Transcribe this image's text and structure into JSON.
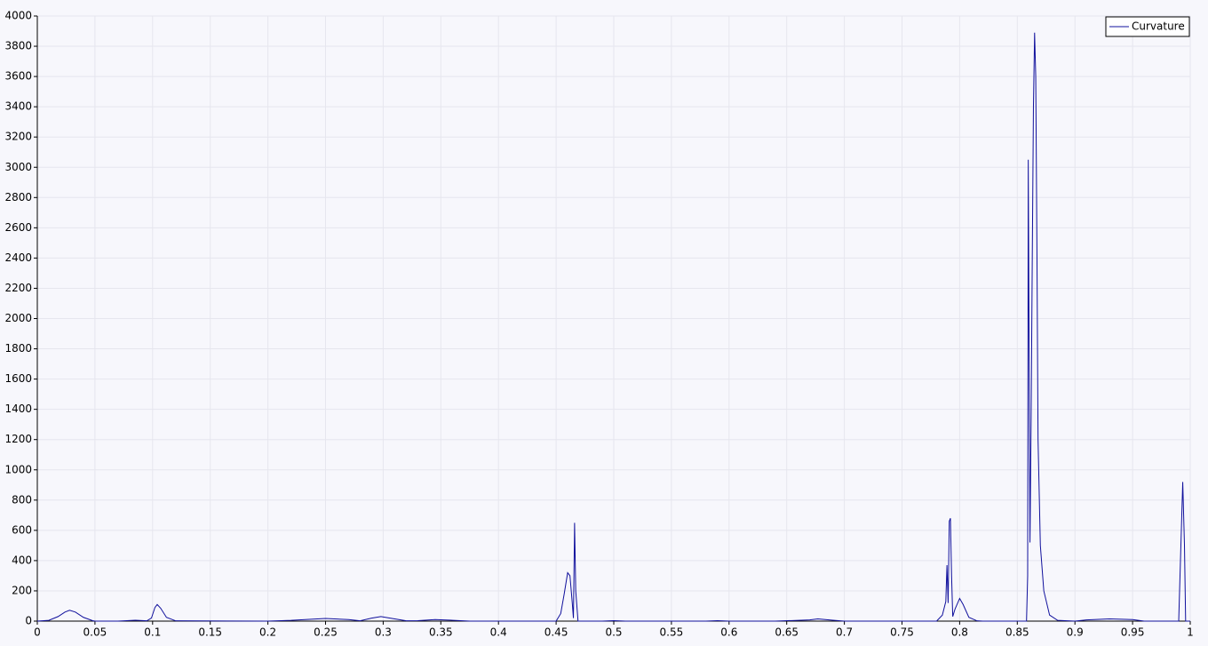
{
  "chart_data": {
    "type": "line",
    "xlim": [
      0,
      1
    ],
    "ylim": [
      0,
      4000
    ],
    "xticks": [
      0,
      0.05,
      0.1,
      0.15,
      0.2,
      0.25,
      0.3,
      0.35,
      0.4,
      0.45,
      0.5,
      0.55,
      0.6,
      0.65,
      0.7,
      0.75,
      0.8,
      0.85,
      0.9,
      0.95,
      1
    ],
    "yticks": [
      0,
      200,
      400,
      600,
      800,
      1000,
      1200,
      1400,
      1600,
      1800,
      2000,
      2200,
      2400,
      2600,
      2800,
      3000,
      3200,
      3400,
      3600,
      3800,
      4000
    ],
    "grid": true,
    "legend": "upper right",
    "x": [
      0,
      0.01,
      0.018,
      0.024,
      0.028,
      0.033,
      0.04,
      0.048,
      0.05,
      0.07,
      0.085,
      0.095,
      0.099,
      0.102,
      0.104,
      0.107,
      0.112,
      0.12,
      0.2,
      0.22,
      0.25,
      0.27,
      0.28,
      0.29,
      0.298,
      0.31,
      0.32,
      0.33,
      0.345,
      0.365,
      0.375,
      0.45,
      0.454,
      0.457,
      0.46,
      0.462,
      0.464,
      0.465,
      0.466,
      0.467,
      0.469,
      0.49,
      0.5,
      0.51,
      0.58,
      0.59,
      0.6,
      0.64,
      0.66,
      0.67,
      0.677,
      0.69,
      0.7,
      0.78,
      0.785,
      0.788,
      0.789,
      0.79,
      0.791,
      0.792,
      0.793,
      0.794,
      0.796,
      0.8,
      0.803,
      0.808,
      0.815,
      0.82,
      0.858,
      0.859,
      0.8595,
      0.861,
      0.862,
      0.863,
      0.864,
      0.865,
      0.866,
      0.867,
      0.868,
      0.87,
      0.873,
      0.878,
      0.885,
      0.9,
      0.91,
      0.93,
      0.95,
      0.96,
      0.99,
      0.9935,
      0.995,
      0.996,
      1
    ],
    "series": [
      {
        "name": "Curvature",
        "color": "#10109c",
        "values": [
          0,
          5,
          30,
          60,
          72,
          60,
          25,
          3,
          0,
          0,
          6,
          2,
          20,
          90,
          110,
          85,
          25,
          2,
          0,
          5,
          18,
          10,
          2,
          20,
          30,
          15,
          2,
          3,
          10,
          4,
          0,
          0,
          50,
          180,
          320,
          300,
          120,
          20,
          650,
          200,
          0,
          0,
          3,
          0,
          0,
          3,
          0,
          0,
          5,
          8,
          15,
          6,
          0,
          0,
          40,
          130,
          370,
          120,
          660,
          680,
          300,
          30,
          80,
          150,
          110,
          25,
          2,
          0,
          0,
          300,
          3050,
          520,
          1350,
          2400,
          3400,
          3890,
          3600,
          2500,
          1200,
          500,
          200,
          40,
          5,
          0,
          8,
          15,
          10,
          0,
          0,
          920,
          500,
          0,
          0
        ]
      }
    ]
  }
}
